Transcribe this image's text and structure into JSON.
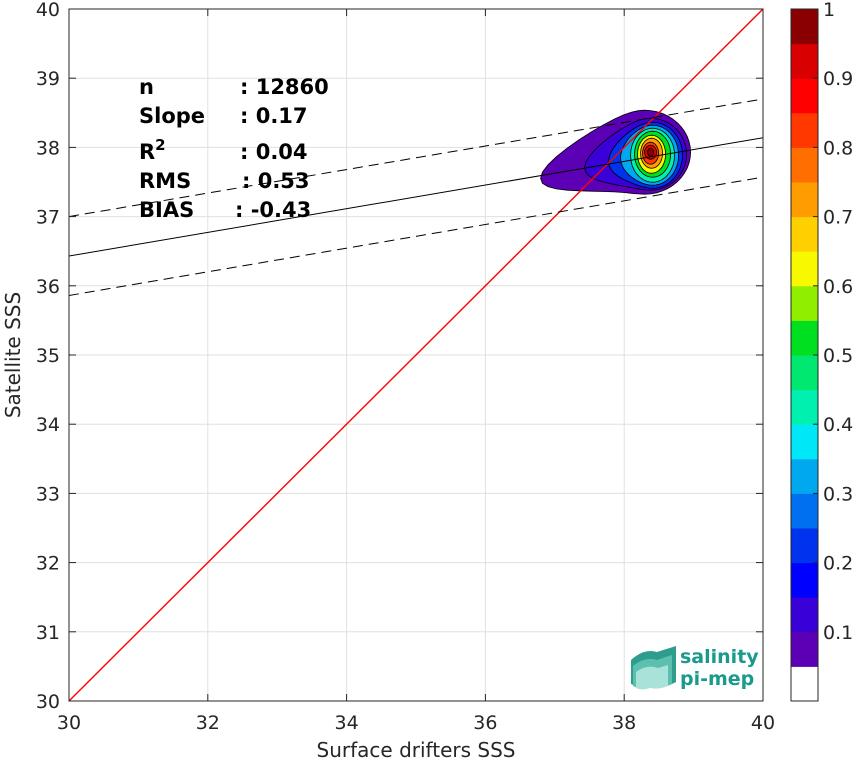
{
  "chart_data": {
    "type": "scatter",
    "title": "",
    "xlabel": "Surface drifters SSS",
    "ylabel": "Satellite SSS",
    "xlim": [
      30,
      40
    ],
    "ylim": [
      30,
      40
    ],
    "x_ticks": [
      30,
      32,
      34,
      36,
      38,
      40
    ],
    "y_ticks": [
      30,
      31,
      32,
      33,
      34,
      35,
      36,
      37,
      38,
      39,
      40
    ],
    "grid": true,
    "stats": [
      {
        "label": "n",
        "value": ": 12860"
      },
      {
        "label": "Slope",
        "value": ": 0.17"
      },
      {
        "label": "R",
        "sup": "2",
        "value": ": 0.04"
      },
      {
        "label": "RMS",
        "value": ": 0.53"
      },
      {
        "label": "BIAS",
        "value": ": -0.43"
      }
    ],
    "identity_line": {
      "x": [
        30,
        40
      ],
      "y": [
        30,
        40
      ],
      "color": "#ff0000"
    },
    "fit_line": {
      "x": [
        30,
        40
      ],
      "y": [
        36.43,
        38.14
      ],
      "color": "#000000"
    },
    "fit_bounds": [
      {
        "x": [
          30,
          40
        ],
        "y": [
          37.0,
          38.7
        ],
        "style": "dashed"
      },
      {
        "x": [
          30,
          40
        ],
        "y": [
          35.86,
          37.57
        ],
        "style": "dashed"
      }
    ],
    "density": {
      "center": [
        38.38,
        37.93
      ],
      "max_level": 1.0,
      "description_levels": [
        0.05,
        0.1,
        0.2,
        0.3,
        0.4,
        0.5,
        0.6,
        0.7,
        0.8,
        0.9,
        0.95
      ]
    },
    "colorbar": {
      "ticks": [
        0.1,
        0.2,
        0.3,
        0.4,
        0.5,
        0.6,
        0.7,
        0.8,
        0.9,
        1
      ],
      "tick_labels": [
        "0.1",
        "0.2",
        "0.3",
        "0.4",
        "0.5",
        "0.6",
        "0.7",
        "0.8",
        "0.9",
        "1"
      ],
      "range": [
        0,
        1
      ],
      "bins": [
        {
          "from": 0.0,
          "to": 0.05,
          "color": "#ffffff"
        },
        {
          "from": 0.05,
          "to": 0.1,
          "color": "#5b00b4"
        },
        {
          "from": 0.1,
          "to": 0.15,
          "color": "#3a00d8"
        },
        {
          "from": 0.15,
          "to": 0.2,
          "color": "#0000ff"
        },
        {
          "from": 0.2,
          "to": 0.25,
          "color": "#0033ee"
        },
        {
          "from": 0.25,
          "to": 0.3,
          "color": "#0070f0"
        },
        {
          "from": 0.3,
          "to": 0.35,
          "color": "#00a8f0"
        },
        {
          "from": 0.35,
          "to": 0.4,
          "color": "#00e8f8"
        },
        {
          "from": 0.4,
          "to": 0.45,
          "color": "#00f0b0"
        },
        {
          "from": 0.45,
          "to": 0.5,
          "color": "#00e870"
        },
        {
          "from": 0.5,
          "to": 0.55,
          "color": "#00e020"
        },
        {
          "from": 0.55,
          "to": 0.6,
          "color": "#90ee00"
        },
        {
          "from": 0.6,
          "to": 0.65,
          "color": "#f8f800"
        },
        {
          "from": 0.65,
          "to": 0.7,
          "color": "#ffd000"
        },
        {
          "from": 0.7,
          "to": 0.75,
          "color": "#ff9c00"
        },
        {
          "from": 0.75,
          "to": 0.8,
          "color": "#ff6e00"
        },
        {
          "from": 0.8,
          "to": 0.85,
          "color": "#ff3800"
        },
        {
          "from": 0.85,
          "to": 0.9,
          "color": "#ff0000"
        },
        {
          "from": 0.9,
          "to": 0.95,
          "color": "#d80000"
        },
        {
          "from": 0.95,
          "to": 1.0,
          "color": "#8a0000"
        }
      ]
    }
  },
  "logo": {
    "line1": "salinity",
    "line2": "pi-mep",
    "color": "#1a9a8c"
  }
}
